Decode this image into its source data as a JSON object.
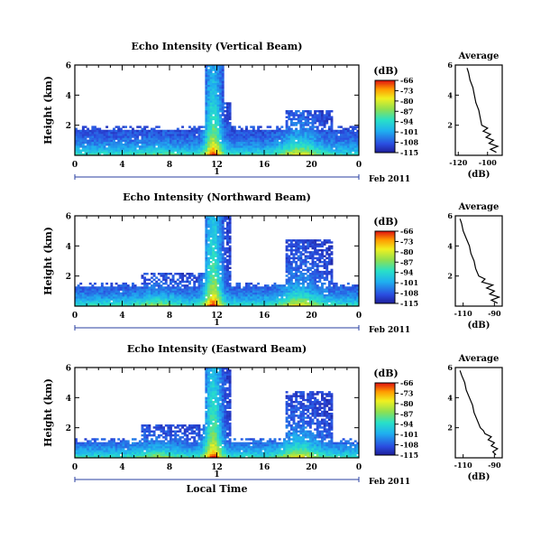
{
  "chart_data": [
    {
      "type": "heatmap",
      "title": "Echo Intensity (Vertical Beam)",
      "ylabel": "Height (km)",
      "xlabel": "",
      "x_ticks": [
        "0",
        "4",
        "8",
        "12",
        "16",
        "20",
        "0"
      ],
      "y_ticks": [
        "2",
        "4",
        "6"
      ],
      "xlim_hours": [
        0,
        24
      ],
      "ylim_km": [
        0,
        6
      ],
      "date_marker": "1",
      "date_label": "Feb 2011",
      "colorbar": {
        "title": "(dB)",
        "ticks": [
          "-66",
          "-73",
          "-80",
          "-87",
          "-94",
          "-101",
          "-108",
          "-115"
        ],
        "range": [
          -115,
          -66
        ]
      },
      "average_profile": {
        "title": "Average",
        "xlabel": "(dB)",
        "x_ticks": [
          "-120",
          "-100"
        ],
        "y_ticks": [
          "2",
          "4",
          "6"
        ],
        "xlim": [
          -122,
          -90
        ],
        "ylim": [
          0,
          6
        ],
        "height_km": [
          0.2,
          0.4,
          0.6,
          0.8,
          1.0,
          1.2,
          1.4,
          1.6,
          1.8,
          2.0,
          2.5,
          3.0,
          3.5,
          4.0,
          4.5,
          5.0,
          5.5,
          5.8
        ],
        "value_db": [
          -94,
          -98,
          -93,
          -99,
          -96,
          -101,
          -98,
          -103,
          -100,
          -104,
          -105,
          -106,
          -108,
          -109,
          -110,
          -112,
          -113,
          -114
        ]
      }
    },
    {
      "type": "heatmap",
      "title": "Echo Intensity (Northward Beam)",
      "ylabel": "Height (km)",
      "xlabel": "",
      "x_ticks": [
        "0",
        "4",
        "8",
        "12",
        "16",
        "20",
        "0"
      ],
      "y_ticks": [
        "2",
        "4",
        "6"
      ],
      "xlim_hours": [
        0,
        24
      ],
      "ylim_km": [
        0,
        6
      ],
      "date_marker": "1",
      "date_label": "Feb 2011",
      "colorbar": {
        "title": "(dB)",
        "ticks": [
          "-66",
          "-73",
          "-80",
          "-87",
          "-94",
          "-101",
          "-108",
          "-115"
        ],
        "range": [
          -115,
          -66
        ]
      },
      "average_profile": {
        "title": "Average",
        "xlabel": "(dB)",
        "x_ticks": [
          "-110",
          "-90"
        ],
        "y_ticks": [
          "2",
          "4",
          "6"
        ],
        "xlim": [
          -115,
          -85
        ],
        "ylim": [
          0,
          6
        ],
        "height_km": [
          0.2,
          0.4,
          0.6,
          0.8,
          1.0,
          1.2,
          1.4,
          1.6,
          1.8,
          2.0,
          2.5,
          3.0,
          3.5,
          4.0,
          4.5,
          5.0,
          5.5,
          5.8
        ],
        "value_db": [
          -88,
          -92,
          -87,
          -93,
          -90,
          -95,
          -91,
          -98,
          -96,
          -100,
          -102,
          -103,
          -105,
          -106,
          -108,
          -110,
          -111,
          -112
        ]
      }
    },
    {
      "type": "heatmap",
      "title": "Echo Intensity (Eastward Beam)",
      "ylabel": "Height (km)",
      "xlabel": "Local Time",
      "x_ticks": [
        "0",
        "4",
        "8",
        "12",
        "16",
        "20",
        "0"
      ],
      "y_ticks": [
        "2",
        "4",
        "6"
      ],
      "xlim_hours": [
        0,
        24
      ],
      "ylim_km": [
        0,
        6
      ],
      "date_marker": "1",
      "date_label": "Feb 2011",
      "colorbar": {
        "title": "(dB)",
        "ticks": [
          "-66",
          "-73",
          "-80",
          "-87",
          "-94",
          "-101",
          "-108",
          "-115"
        ],
        "range": [
          -115,
          -66
        ]
      },
      "average_profile": {
        "title": "Average",
        "xlabel": "(dB)",
        "x_ticks": [
          "-110",
          "-90"
        ],
        "y_ticks": [
          "2",
          "4",
          "6"
        ],
        "xlim": [
          -115,
          -85
        ],
        "ylim": [
          0,
          6
        ],
        "height_km": [
          0.2,
          0.4,
          0.6,
          0.8,
          1.0,
          1.2,
          1.4,
          1.6,
          1.8,
          2.0,
          2.5,
          3.0,
          3.5,
          4.0,
          4.5,
          5.0,
          5.5,
          5.8
        ],
        "value_db": [
          -89,
          -91,
          -88,
          -92,
          -90,
          -94,
          -92,
          -96,
          -97,
          -99,
          -101,
          -103,
          -104,
          -106,
          -108,
          -109,
          -111,
          -112
        ]
      }
    }
  ]
}
